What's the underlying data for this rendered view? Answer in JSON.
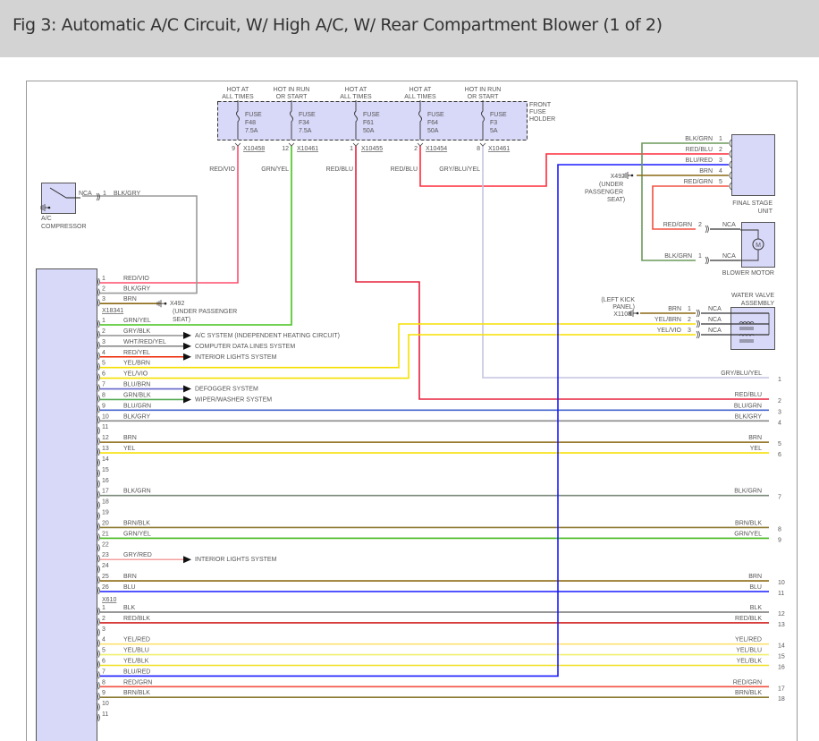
{
  "title": "Fig 3: Automatic A/C Circuit, W/ High A/C, W/ Rear Compartment Blower (1 of 2)",
  "fuse_holder": {
    "label": [
      "FRONT",
      "FUSE",
      "HOLDER"
    ],
    "fuses": [
      {
        "id": "F48",
        "feed": [
          "HOT AT",
          "ALL TIMES"
        ],
        "name": "FUSE",
        "rating": "7.5A",
        "pin": "9",
        "connector": "X10458",
        "wire": "RED/VIO",
        "color": "#ff4d6d"
      },
      {
        "id": "F34",
        "feed": [
          "HOT IN RUN",
          "OR START"
        ],
        "name": "FUSE",
        "rating": "7.5A",
        "pin": "12",
        "connector": "X10461",
        "wire": "GRN/YEL",
        "color": "#44c21a"
      },
      {
        "id": "F61",
        "feed": [
          "HOT AT",
          "ALL TIMES"
        ],
        "name": "FUSE",
        "rating": "50A",
        "pin": "1",
        "connector": "X10455",
        "wire": "RED/BLU",
        "color": "#e8203c"
      },
      {
        "id": "F64",
        "feed": [
          "HOT AT",
          "ALL TIMES"
        ],
        "name": "FUSE",
        "rating": "50A",
        "pin": "2",
        "connector": "X10454",
        "wire": "RED/BLU",
        "color": "#ff2a3a"
      },
      {
        "id": "F3",
        "feed": [
          "HOT IN RUN",
          "OR START"
        ],
        "name": "FUSE",
        "rating": "5A",
        "pin": "8",
        "connector": "X10461",
        "wire": "GRY/BLU/YEL",
        "color": "#c4c4e0"
      }
    ]
  },
  "compressor": {
    "label": [
      "A/C",
      "COMPRESSOR"
    ],
    "nca": "NCA",
    "pin": "1",
    "wire": "BLK/GRY",
    "color": "#9a9a9a"
  },
  "final_stage": {
    "label": [
      "FINAL STAGE",
      "UNIT"
    ],
    "pins": [
      {
        "pin": "1",
        "wire": "BLK/GRN",
        "color": "#6a9a5a"
      },
      {
        "pin": "2",
        "wire": "RED/BLU",
        "color": "#ff2a3a"
      },
      {
        "pin": "3",
        "wire": "BLU/RED",
        "color": "#1a1aff"
      },
      {
        "pin": "4",
        "wire": "BRN",
        "color": "#8b6914"
      },
      {
        "pin": "5",
        "wire": "RED/GRN",
        "color": "#f05040"
      }
    ],
    "ground": {
      "id": "X492",
      "note": [
        "(UNDER",
        "PASSENGER",
        "SEAT)"
      ]
    }
  },
  "blower_motor": {
    "label": "BLOWER MOTOR",
    "symbol": "M",
    "pins": [
      {
        "pin": "2",
        "wire": "RED/GRN",
        "nca": "NCA",
        "color": "#f05040"
      },
      {
        "pin": "1",
        "wire": "BLK/GRN",
        "nca": "NCA",
        "color": "#6a9a5a"
      }
    ]
  },
  "water_valve": {
    "label": [
      "WATER VALVE",
      "ASSEMBLY"
    ],
    "ground": {
      "id": "X1108",
      "note": [
        "(LEFT KICK",
        "PANEL)"
      ]
    },
    "pins": [
      {
        "pin": "1",
        "wire": "BRN",
        "nca": "NCA",
        "color": "#8b6914"
      },
      {
        "pin": "2",
        "wire": "YEL/BRN",
        "nca": "NCA",
        "color": "#f5e000"
      },
      {
        "pin": "3",
        "wire": "YEL/VIO",
        "nca": "NCA",
        "color": "#f5e000"
      }
    ]
  },
  "left_ground": {
    "id": "X492",
    "note": [
      "(UNDER PASSENGER",
      "SEAT)"
    ]
  },
  "connectors": [
    {
      "id": "X18341",
      "pins": [
        {
          "pin": "1",
          "wire": "RED/VIO",
          "color": "#ff4d6d",
          "to": "fuse F48"
        },
        {
          "pin": "2",
          "wire": "BLK/GRY",
          "color": "#9a9a9a",
          "to": "A/C COMPRESSOR"
        },
        {
          "pin": "3",
          "wire": "BRN",
          "color": "#8b6914",
          "to": "ground X492"
        }
      ]
    },
    {
      "id": "X610",
      "pins": [
        {
          "pin": "1",
          "wire": "GRN/YEL",
          "color": "#44c21a",
          "to": "fuse F34"
        },
        {
          "pin": "2",
          "wire": "GRY/BLK",
          "color": "#9a9a9a",
          "arrow": "A/C SYSTEM (INDEPENDENT HEATING CIRCUIT)"
        },
        {
          "pin": "3",
          "wire": "WHT/RED/YEL",
          "color": "#8a8a8a",
          "arrow": "COMPUTER DATA LINES SYSTEM"
        },
        {
          "pin": "4",
          "wire": "RED/YEL",
          "color": "#ee2200",
          "arrow": "INTERIOR LIGHTS SYSTEM"
        },
        {
          "pin": "5",
          "wire": "YEL/BRN",
          "color": "#f5e000",
          "to": "WATER VALVE 2"
        },
        {
          "pin": "6",
          "wire": "YEL/VIO",
          "color": "#f5e000",
          "to": "WATER VALVE 3"
        },
        {
          "pin": "7",
          "wire": "BLU/BRN",
          "color": "#6666cc",
          "arrow": "DEFOGGER SYSTEM"
        },
        {
          "pin": "8",
          "wire": "GRN/BLK",
          "color": "#55aa55",
          "arrow": "WIPER/WASHER SYSTEM"
        },
        {
          "pin": "9",
          "wire": "BLU/GRN",
          "color": "#4466cc",
          "right": "3"
        },
        {
          "pin": "10",
          "wire": "BLK/GRY",
          "color": "#8a8a8a",
          "right": "4"
        },
        {
          "pin": "11",
          "wire": ""
        },
        {
          "pin": "12",
          "wire": "BRN",
          "color": "#8b6914",
          "right": "5"
        },
        {
          "pin": "13",
          "wire": "YEL",
          "color": "#f5e000",
          "right": "6"
        },
        {
          "pin": "14",
          "wire": ""
        },
        {
          "pin": "15",
          "wire": ""
        },
        {
          "pin": "16",
          "wire": ""
        },
        {
          "pin": "17",
          "wire": "BLK/GRN",
          "color": "#7a8a7a",
          "right": "7"
        },
        {
          "pin": "18",
          "wire": ""
        },
        {
          "pin": "19",
          "wire": ""
        },
        {
          "pin": "20",
          "wire": "BRN/BLK",
          "color": "#8b7a30",
          "right": "8"
        },
        {
          "pin": "21",
          "wire": "GRN/YEL",
          "color": "#44b81a",
          "right": "9"
        },
        {
          "pin": "22",
          "wire": ""
        },
        {
          "pin": "23",
          "wire": "GRY/RED",
          "color": "#f4a0a0",
          "arrow": "INTERIOR LIGHTS SYSTEM"
        },
        {
          "pin": "24",
          "wire": ""
        },
        {
          "pin": "25",
          "wire": "BRN",
          "color": "#8b6914",
          "right": "10"
        },
        {
          "pin": "26",
          "wire": "BLU",
          "color": "#1a1aff",
          "right": "11"
        }
      ]
    },
    {
      "id": "",
      "pins": [
        {
          "pin": "1",
          "wire": "BLK",
          "color": "#777777",
          "right": "12"
        },
        {
          "pin": "2",
          "wire": "RED/BLK",
          "color": "#d02020",
          "right": "13"
        },
        {
          "pin": "3",
          "wire": ""
        },
        {
          "pin": "4",
          "wire": "YEL/RED",
          "color": "#ffe070",
          "right": "14"
        },
        {
          "pin": "5",
          "wire": "YEL/BLU",
          "color": "#f0f070",
          "right": "15"
        },
        {
          "pin": "6",
          "wire": "YEL/BLK",
          "color": "#f0e020",
          "right": "16"
        },
        {
          "pin": "7",
          "wire": "BLU/RED",
          "color": "#4a4aee",
          "to": "FINAL STAGE UNIT 3"
        },
        {
          "pin": "8",
          "wire": "RED/GRN",
          "color": "#f05040",
          "right": "17"
        },
        {
          "pin": "9",
          "wire": "BRN/BLK",
          "color": "#8b7a30",
          "right": "18"
        },
        {
          "pin": "10",
          "wire": ""
        },
        {
          "pin": "11",
          "wire": ""
        }
      ]
    }
  ],
  "right_pins": [
    {
      "num": "1",
      "wire": "GRY/BLU/YEL"
    },
    {
      "num": "2",
      "wire": "RED/BLU"
    },
    {
      "num": "3",
      "wire": "BLU/GRN"
    },
    {
      "num": "4",
      "wire": "BLK/GRY"
    },
    {
      "num": "5",
      "wire": "BRN"
    },
    {
      "num": "6",
      "wire": "YEL"
    },
    {
      "num": "7",
      "wire": "BLK/GRN"
    },
    {
      "num": "8",
      "wire": "BRN/BLK"
    },
    {
      "num": "9",
      "wire": "GRN/YEL"
    },
    {
      "num": "10",
      "wire": "BRN"
    },
    {
      "num": "11",
      "wire": "BLU"
    },
    {
      "num": "12",
      "wire": "BLK"
    },
    {
      "num": "13",
      "wire": "RED/BLK"
    },
    {
      "num": "14",
      "wire": "YEL/RED"
    },
    {
      "num": "15",
      "wire": "YEL/BLU"
    },
    {
      "num": "16",
      "wire": "YEL/BLK"
    },
    {
      "num": "17",
      "wire": "RED/GRN"
    },
    {
      "num": "18",
      "wire": "BRN/BLK"
    }
  ],
  "colors": {
    "header_bg": "#d3d3d3",
    "component_fill": "#d8d8f8",
    "component_stroke": "#666666",
    "text": "#555555"
  }
}
